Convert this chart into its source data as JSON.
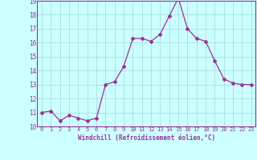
{
  "x": [
    0,
    1,
    2,
    3,
    4,
    5,
    6,
    7,
    8,
    9,
    10,
    11,
    12,
    13,
    14,
    15,
    16,
    17,
    18,
    19,
    20,
    21,
    22,
    23
  ],
  "y": [
    11.0,
    11.1,
    10.4,
    10.8,
    10.6,
    10.4,
    10.6,
    13.0,
    13.2,
    14.3,
    16.3,
    16.3,
    16.1,
    16.6,
    17.9,
    19.2,
    17.0,
    16.3,
    16.1,
    14.7,
    13.4,
    13.1,
    13.0,
    13.0
  ],
  "ylim": [
    10,
    19
  ],
  "yticks": [
    10,
    11,
    12,
    13,
    14,
    15,
    16,
    17,
    18,
    19
  ],
  "xticks": [
    0,
    1,
    2,
    3,
    4,
    5,
    6,
    7,
    8,
    9,
    10,
    11,
    12,
    13,
    14,
    15,
    16,
    17,
    18,
    19,
    20,
    21,
    22,
    23
  ],
  "xlabel": "Windchill (Refroidissement éolien,°C)",
  "line_color": "#993399",
  "marker": "D",
  "marker_size": 2.0,
  "bg_color": "#ccffff",
  "grid_color": "#aadddd",
  "tick_label_color": "#993399",
  "axis_label_color": "#993399",
  "font_name": "monospace"
}
